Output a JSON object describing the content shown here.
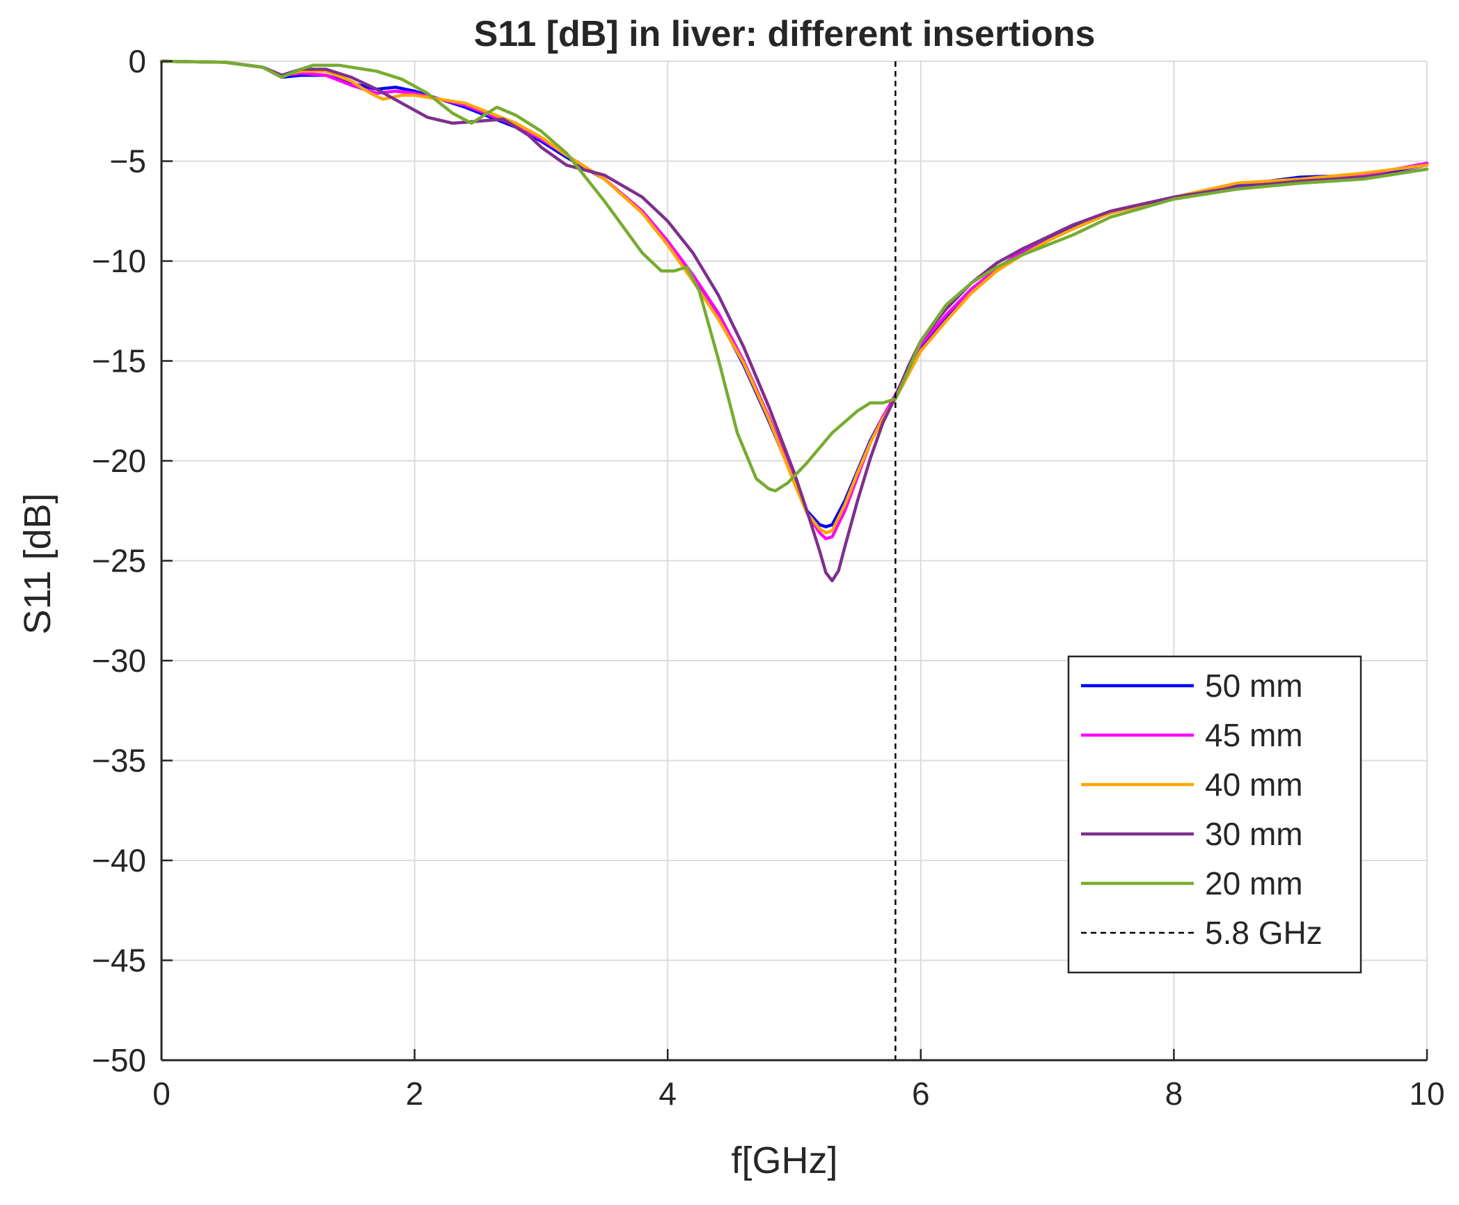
{
  "chart_data": {
    "type": "line",
    "title": "S11 [dB] in liver: different insertions",
    "xlabel": "f[GHz]",
    "ylabel": "S11 [dB]",
    "xlim": [
      0,
      10
    ],
    "ylim": [
      -50,
      0
    ],
    "grid": true,
    "legend_position": "lower-right",
    "xticks": [
      0,
      2,
      4,
      6,
      8,
      10
    ],
    "xtick_labels": [
      "0",
      "2",
      "4",
      "6",
      "8",
      "10"
    ],
    "yticks": [
      0,
      -5,
      -10,
      -15,
      -20,
      -25,
      -30,
      -35,
      -40,
      -45,
      -50
    ],
    "ytick_labels": [
      "0",
      "−5",
      "−10",
      "−15",
      "−20",
      "−25",
      "−30",
      "−35",
      "−40",
      "−45",
      "−50"
    ],
    "series": [
      {
        "name": "50 mm",
        "color": "#0000ff",
        "x": [
          0,
          0.5,
          0.8,
          0.95,
          1.1,
          1.3,
          1.5,
          1.7,
          1.85,
          2.0,
          2.2,
          2.4,
          2.6,
          2.8,
          3.0,
          3.2,
          3.5,
          3.8,
          4.0,
          4.2,
          4.4,
          4.6,
          4.8,
          5.0,
          5.1,
          5.2,
          5.25,
          5.3,
          5.4,
          5.5,
          5.6,
          5.7,
          5.8,
          5.9,
          6.0,
          6.2,
          6.4,
          6.6,
          6.8,
          7.0,
          7.2,
          7.5,
          8.0,
          8.5,
          9.0,
          9.5,
          10.0
        ],
        "y": [
          0,
          -0.05,
          -0.3,
          -0.8,
          -0.7,
          -0.7,
          -1.1,
          -1.4,
          -1.3,
          -1.5,
          -1.9,
          -2.3,
          -2.8,
          -3.3,
          -4.0,
          -4.8,
          -5.9,
          -7.5,
          -9.0,
          -10.8,
          -12.8,
          -15.2,
          -18.0,
          -21.0,
          -22.5,
          -23.2,
          -23.3,
          -23.2,
          -22.0,
          -20.5,
          -19.0,
          -17.8,
          -16.8,
          -15.5,
          -14.3,
          -12.8,
          -11.5,
          -10.4,
          -9.6,
          -8.9,
          -8.3,
          -7.6,
          -6.8,
          -6.2,
          -5.8,
          -5.7,
          -5.2
        ]
      },
      {
        "name": "45 mm",
        "color": "#ff00ff",
        "x": [
          0,
          0.5,
          0.8,
          0.95,
          1.1,
          1.3,
          1.5,
          1.7,
          1.85,
          2.0,
          2.2,
          2.4,
          2.6,
          2.8,
          3.0,
          3.2,
          3.5,
          3.8,
          4.0,
          4.2,
          4.4,
          4.6,
          4.8,
          5.0,
          5.1,
          5.2,
          5.25,
          5.3,
          5.4,
          5.5,
          5.6,
          5.7,
          5.8,
          5.9,
          6.0,
          6.2,
          6.4,
          6.6,
          6.8,
          7.0,
          7.2,
          7.5,
          8.0,
          8.5,
          9.0,
          9.5,
          10.0
        ],
        "y": [
          0,
          -0.05,
          -0.3,
          -0.7,
          -0.6,
          -0.7,
          -1.2,
          -1.6,
          -1.5,
          -1.6,
          -1.9,
          -2.2,
          -2.7,
          -3.2,
          -3.9,
          -4.7,
          -5.9,
          -7.5,
          -9.0,
          -10.7,
          -12.6,
          -15.0,
          -17.8,
          -20.9,
          -22.6,
          -23.6,
          -23.9,
          -23.8,
          -22.5,
          -20.8,
          -19.1,
          -17.8,
          -16.7,
          -15.4,
          -14.2,
          -12.7,
          -11.4,
          -10.4,
          -9.5,
          -8.8,
          -8.2,
          -7.5,
          -6.8,
          -6.3,
          -6.0,
          -5.7,
          -5.1
        ]
      },
      {
        "name": "40 mm",
        "color": "#ffa500",
        "x": [
          0,
          0.5,
          0.8,
          0.95,
          1.1,
          1.3,
          1.5,
          1.65,
          1.75,
          1.9,
          2.0,
          2.2,
          2.4,
          2.6,
          2.8,
          3.0,
          3.2,
          3.5,
          3.8,
          4.0,
          4.2,
          4.4,
          4.6,
          4.8,
          5.0,
          5.1,
          5.2,
          5.25,
          5.3,
          5.4,
          5.5,
          5.6,
          5.7,
          5.8,
          5.9,
          6.0,
          6.2,
          6.4,
          6.6,
          6.8,
          7.0,
          7.2,
          7.5,
          8.0,
          8.5,
          9.0,
          9.5,
          10.0
        ],
        "y": [
          0,
          -0.05,
          -0.3,
          -0.7,
          -0.5,
          -0.5,
          -1.0,
          -1.6,
          -1.9,
          -1.7,
          -1.7,
          -1.9,
          -2.1,
          -2.6,
          -3.1,
          -3.8,
          -4.7,
          -5.9,
          -7.6,
          -9.2,
          -11.0,
          -12.9,
          -15.1,
          -17.9,
          -21.1,
          -22.6,
          -23.4,
          -23.6,
          -23.5,
          -22.2,
          -20.6,
          -19.1,
          -17.9,
          -16.9,
          -15.7,
          -14.5,
          -13.0,
          -11.6,
          -10.5,
          -9.7,
          -9.0,
          -8.4,
          -7.6,
          -6.8,
          -6.1,
          -5.9,
          -5.6,
          -5.2
        ]
      },
      {
        "name": "30 mm",
        "color": "#7e2f8e",
        "x": [
          0,
          0.5,
          0.8,
          0.95,
          1.1,
          1.3,
          1.5,
          1.7,
          1.9,
          2.1,
          2.3,
          2.5,
          2.7,
          2.9,
          3.0,
          3.2,
          3.5,
          3.8,
          4.0,
          4.2,
          4.4,
          4.6,
          4.8,
          5.0,
          5.1,
          5.2,
          5.25,
          5.3,
          5.35,
          5.4,
          5.5,
          5.6,
          5.7,
          5.8,
          5.9,
          6.0,
          6.2,
          6.4,
          6.6,
          6.8,
          7.0,
          7.2,
          7.5,
          8.0,
          8.5,
          9.0,
          9.5,
          10.0
        ],
        "y": [
          0,
          -0.05,
          -0.3,
          -0.7,
          -0.4,
          -0.4,
          -0.8,
          -1.4,
          -2.1,
          -2.8,
          -3.1,
          -3.0,
          -2.9,
          -3.7,
          -4.3,
          -5.2,
          -5.7,
          -6.8,
          -8.0,
          -9.6,
          -11.7,
          -14.3,
          -17.3,
          -20.6,
          -22.5,
          -24.5,
          -25.6,
          -26.0,
          -25.5,
          -24.3,
          -22.0,
          -19.9,
          -18.1,
          -16.8,
          -15.3,
          -14.0,
          -12.4,
          -11.1,
          -10.1,
          -9.4,
          -8.8,
          -8.2,
          -7.5,
          -6.8,
          -6.3,
          -6.0,
          -5.8,
          -5.4
        ]
      },
      {
        "name": "20 mm",
        "color": "#77ac30",
        "x": [
          0,
          0.5,
          0.8,
          0.95,
          1.1,
          1.2,
          1.4,
          1.7,
          1.9,
          2.1,
          2.3,
          2.45,
          2.55,
          2.65,
          2.8,
          3.0,
          3.2,
          3.5,
          3.8,
          3.95,
          4.05,
          4.15,
          4.25,
          4.4,
          4.55,
          4.7,
          4.8,
          4.85,
          4.95,
          5.1,
          5.3,
          5.5,
          5.6,
          5.7,
          5.8,
          5.9,
          6.0,
          6.2,
          6.4,
          6.6,
          6.8,
          7.0,
          7.2,
          7.5,
          8.0,
          8.5,
          9.0,
          9.5,
          10.0
        ],
        "y": [
          0,
          -0.05,
          -0.3,
          -0.8,
          -0.4,
          -0.2,
          -0.2,
          -0.5,
          -0.9,
          -1.6,
          -2.6,
          -3.1,
          -2.7,
          -2.3,
          -2.7,
          -3.5,
          -4.6,
          -7.0,
          -9.6,
          -10.5,
          -10.5,
          -10.3,
          -11.5,
          -14.9,
          -18.6,
          -20.9,
          -21.4,
          -21.5,
          -21.1,
          -20.1,
          -18.6,
          -17.5,
          -17.1,
          -17.1,
          -16.9,
          -15.5,
          -14.0,
          -12.2,
          -11.1,
          -10.3,
          -9.7,
          -9.2,
          -8.7,
          -7.8,
          -6.9,
          -6.4,
          -6.1,
          -5.9,
          -5.4
        ]
      },
      {
        "name": "5.8 GHz",
        "color": "#000000",
        "style": "dashed",
        "x": [
          5.8,
          5.8
        ],
        "y": [
          0,
          -50
        ]
      }
    ]
  }
}
